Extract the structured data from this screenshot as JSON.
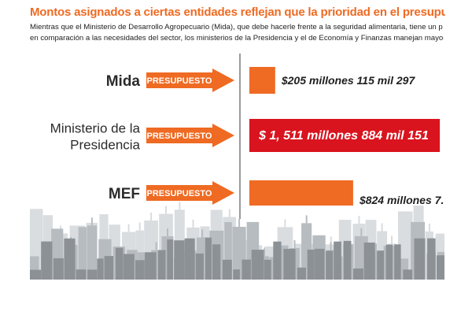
{
  "header": {
    "title": "Montos asignados a ciertas entidades reflejan que la prioridad en el presupuesto",
    "subtitle_line1": "Mientras que el Ministerio de Desarrollo Agropecuario (Mida), que debe hacerle frente a la seguridad alimentaria, tiene un p",
    "subtitle_line2": "en comparación a las necesidades del sector, los ministerios de la Presidencia y el de Economía y Finanzas manejan mayor ca"
  },
  "colors": {
    "accent": "#ef6a22",
    "highlight": "#d9141e",
    "text_dark": "#2b2b2b",
    "city_base": "#8a8f93"
  },
  "chart_data": {
    "type": "bar",
    "orientation": "horizontal",
    "title": "Montos asignados a ciertas entidades reflejan que la prioridad en el presupuesto",
    "categories": [
      "Mida",
      "Ministerio de la Presidencia",
      "MEF"
    ],
    "category_lines": [
      [
        "Mida"
      ],
      [
        "Ministerio de la",
        "Presidencia"
      ],
      [
        "MEF"
      ]
    ],
    "bar_tag": "PRESUPUESTO",
    "values": [
      205115297,
      1511884151,
      824000000
    ],
    "value_labels": [
      "$205 millones 115 mil 297",
      "$ 1, 511 millones 884 mil 151",
      "$824 millones 7."
    ],
    "highlighted_index": 1,
    "unit": "USD"
  }
}
